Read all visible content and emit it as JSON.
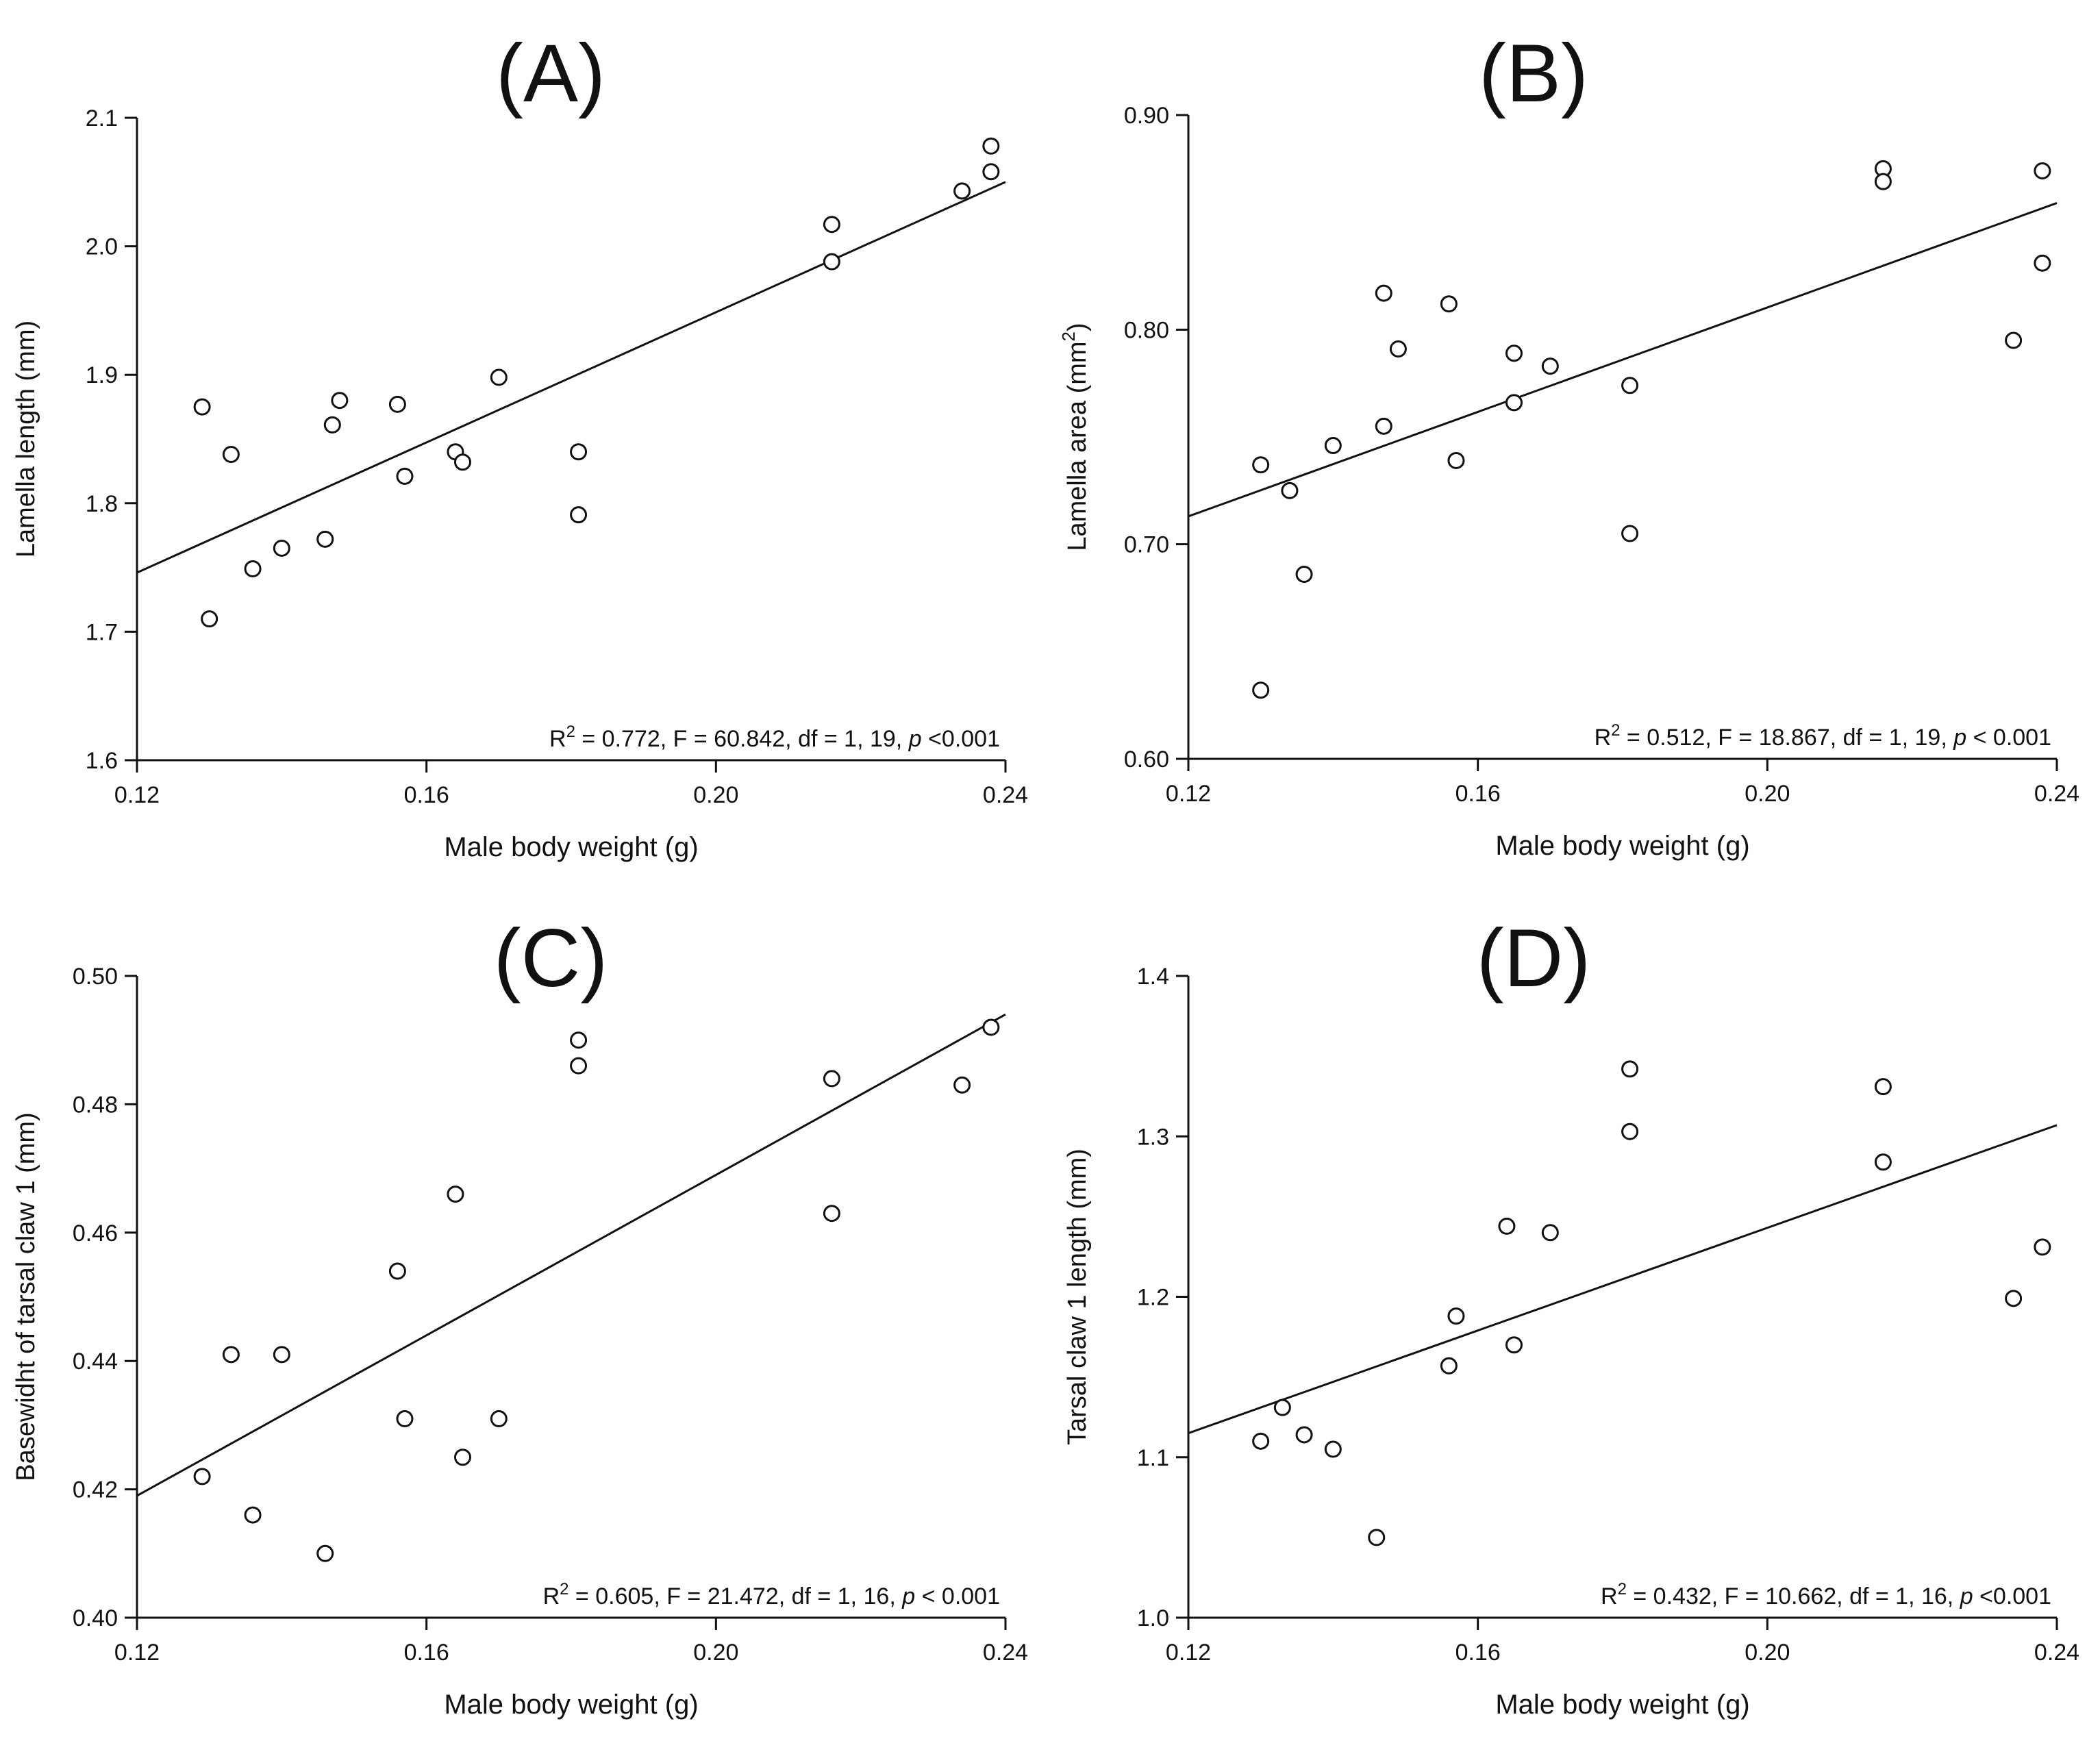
{
  "chart_data": [
    {
      "type": "scatter",
      "panel_label": "(A)",
      "xlabel": "Male body weight (g)",
      "ylabel": "Lamella length (mm)",
      "xlim": [
        0.12,
        0.24
      ],
      "ylim": [
        1.6,
        2.1
      ],
      "x_ticks": [
        "0.12",
        "0.16",
        "0.20",
        "0.24"
      ],
      "y_ticks": [
        "1.6",
        "1.7",
        "1.8",
        "1.9",
        "2.0",
        "2.1"
      ],
      "points": [
        [
          0.129,
          1.875
        ],
        [
          0.13,
          1.71
        ],
        [
          0.133,
          1.838
        ],
        [
          0.136,
          1.749
        ],
        [
          0.14,
          1.765
        ],
        [
          0.146,
          1.772
        ],
        [
          0.147,
          1.861
        ],
        [
          0.148,
          1.88
        ],
        [
          0.156,
          1.877
        ],
        [
          0.157,
          1.821
        ],
        [
          0.164,
          1.84
        ],
        [
          0.165,
          1.832
        ],
        [
          0.17,
          1.898
        ],
        [
          0.181,
          1.84
        ],
        [
          0.181,
          1.791
        ],
        [
          0.216,
          2.017
        ],
        [
          0.216,
          1.988
        ],
        [
          0.234,
          2.043
        ],
        [
          0.238,
          2.078
        ],
        [
          0.238,
          2.058
        ]
      ],
      "fit_line": {
        "x": [
          0.12,
          0.24
        ],
        "y": [
          1.746,
          2.05
        ]
      },
      "stats": {
        "r2_label": "R",
        "r2_sup": "2",
        "r2_rest": " = 0.772, F = 60.842, df = 1, 19, ",
        "p_symbol": "p",
        "p_rest": " <0.001"
      }
    },
    {
      "type": "scatter",
      "panel_label": "(B)",
      "xlabel": "Male body weight (g)",
      "ylabel_main": "Lamella area (mm",
      "ylabel_sup": "2",
      "ylabel_end": ")",
      "xlim": [
        0.12,
        0.24
      ],
      "ylim": [
        0.6,
        0.9
      ],
      "x_ticks": [
        "0.12",
        "0.16",
        "0.20",
        "0.24"
      ],
      "y_ticks": [
        "0.60",
        "0.70",
        "0.80",
        "0.90"
      ],
      "points": [
        [
          0.13,
          0.737
        ],
        [
          0.13,
          0.632
        ],
        [
          0.134,
          0.725
        ],
        [
          0.136,
          0.686
        ],
        [
          0.14,
          0.746
        ],
        [
          0.147,
          0.817
        ],
        [
          0.147,
          0.755
        ],
        [
          0.149,
          0.791
        ],
        [
          0.156,
          0.812
        ],
        [
          0.157,
          0.739
        ],
        [
          0.165,
          0.766
        ],
        [
          0.165,
          0.789
        ],
        [
          0.17,
          0.783
        ],
        [
          0.181,
          0.774
        ],
        [
          0.181,
          0.705
        ],
        [
          0.216,
          0.875
        ],
        [
          0.216,
          0.869
        ],
        [
          0.234,
          0.795
        ],
        [
          0.238,
          0.874
        ],
        [
          0.238,
          0.831
        ]
      ],
      "fit_line": {
        "x": [
          0.12,
          0.24
        ],
        "y": [
          0.713,
          0.859
        ]
      },
      "stats": {
        "r2_label": "R",
        "r2_sup": "2",
        "r2_rest": " = 0.512, F = 18.867, df = 1, 19, ",
        "p_symbol": "p",
        "p_rest": " < 0.001"
      }
    },
    {
      "type": "scatter",
      "panel_label": "(C)",
      "xlabel": "Male body weight (g)",
      "ylabel": "Basewidht of tarsal claw 1 (mm)",
      "xlim": [
        0.12,
        0.24
      ],
      "ylim": [
        0.4,
        0.5
      ],
      "x_ticks": [
        "0.12",
        "0.16",
        "0.20",
        "0.24"
      ],
      "y_ticks": [
        "0.40",
        "0.42",
        "0.44",
        "0.46",
        "0.48",
        "0.50"
      ],
      "points": [
        [
          0.129,
          0.422
        ],
        [
          0.133,
          0.441
        ],
        [
          0.136,
          0.416
        ],
        [
          0.14,
          0.441
        ],
        [
          0.146,
          0.41
        ],
        [
          0.156,
          0.454
        ],
        [
          0.157,
          0.431
        ],
        [
          0.164,
          0.466
        ],
        [
          0.165,
          0.425
        ],
        [
          0.17,
          0.431
        ],
        [
          0.181,
          0.49
        ],
        [
          0.181,
          0.486
        ],
        [
          0.216,
          0.484
        ],
        [
          0.216,
          0.463
        ],
        [
          0.234,
          0.483
        ],
        [
          0.238,
          0.492
        ]
      ],
      "fit_line": {
        "x": [
          0.12,
          0.24
        ],
        "y": [
          0.419,
          0.494
        ]
      },
      "stats": {
        "r2_label": "R",
        "r2_sup": "2",
        "r2_rest": " = 0.605, F = 21.472, df = 1, 16, ",
        "p_symbol": "p",
        "p_rest": " < 0.001"
      }
    },
    {
      "type": "scatter",
      "panel_label": "(D)",
      "xlabel": "Male body weight (g)",
      "ylabel": "Tarsal claw 1 length (mm)",
      "xlim": [
        0.12,
        0.24
      ],
      "ylim": [
        1.0,
        1.4
      ],
      "x_ticks": [
        "0.12",
        "0.16",
        "0.20",
        "0.24"
      ],
      "y_ticks": [
        "1.0",
        "1.1",
        "1.2",
        "1.3",
        "1.4"
      ],
      "points": [
        [
          0.13,
          1.11
        ],
        [
          0.133,
          1.131
        ],
        [
          0.136,
          1.114
        ],
        [
          0.14,
          1.105
        ],
        [
          0.146,
          1.05
        ],
        [
          0.156,
          1.157
        ],
        [
          0.157,
          1.188
        ],
        [
          0.164,
          1.244
        ],
        [
          0.165,
          1.17
        ],
        [
          0.17,
          1.24
        ],
        [
          0.181,
          1.342
        ],
        [
          0.181,
          1.303
        ],
        [
          0.216,
          1.331
        ],
        [
          0.216,
          1.284
        ],
        [
          0.234,
          1.199
        ],
        [
          0.238,
          1.231
        ]
      ],
      "fit_line": {
        "x": [
          0.12,
          0.24
        ],
        "y": [
          1.115,
          1.307
        ]
      },
      "stats": {
        "r2_label": "R",
        "r2_sup": "2",
        "r2_rest": " = 0.432, F = 10.662, df = 1, 16, ",
        "p_symbol": "p",
        "p_rest": " <0.001"
      }
    }
  ]
}
